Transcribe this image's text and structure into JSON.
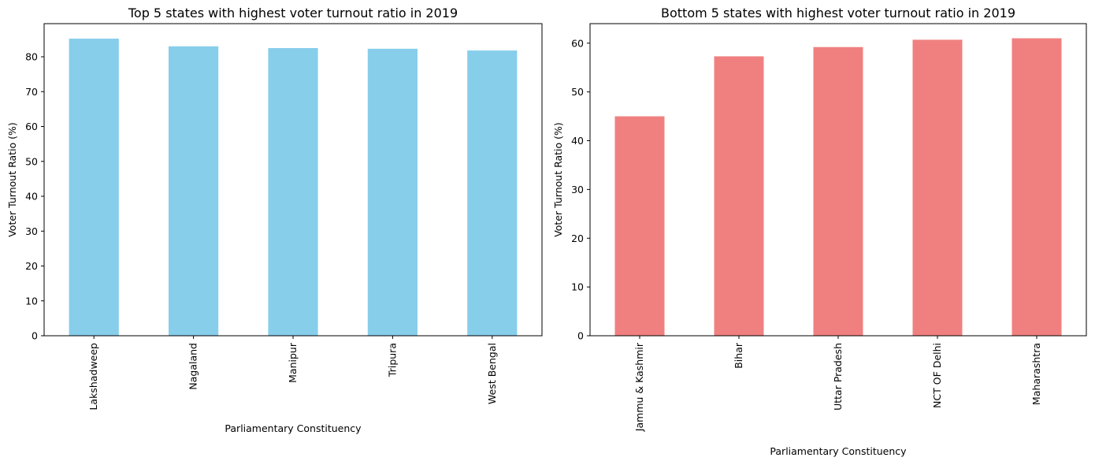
{
  "chart_data": [
    {
      "type": "bar",
      "title": "Top 5 states with highest voter turnout ratio in 2019",
      "xlabel": "Parliamentary Constituency",
      "ylabel": "Voter Turnout Ratio (%)",
      "categories": [
        "Lakshadweep",
        "Nagaland",
        "Manipur",
        "Tripura",
        "West Bengal"
      ],
      "values": [
        85.2,
        83.0,
        82.5,
        82.3,
        81.8
      ],
      "ylim": [
        0,
        89.5
      ],
      "yticks": [
        0,
        10,
        20,
        30,
        40,
        50,
        60,
        70,
        80
      ],
      "color": "#87ceeb",
      "grid": false,
      "legend": "none"
    },
    {
      "type": "bar",
      "title": "Bottom 5 states with highest voter turnout ratio in 2019",
      "xlabel": "Parliamentary Constituency",
      "ylabel": "Voter Turnout Ratio (%)",
      "categories": [
        "Jammu & Kashmir",
        "Bihar",
        "Uttar Pradesh",
        "NCT OF Delhi",
        "Maharashtra"
      ],
      "values": [
        45.0,
        57.3,
        59.2,
        60.7,
        61.0
      ],
      "ylim": [
        0,
        64.0
      ],
      "yticks": [
        0,
        10,
        20,
        30,
        40,
        50,
        60
      ],
      "color": "#f08080",
      "grid": false,
      "legend": "none"
    }
  ]
}
